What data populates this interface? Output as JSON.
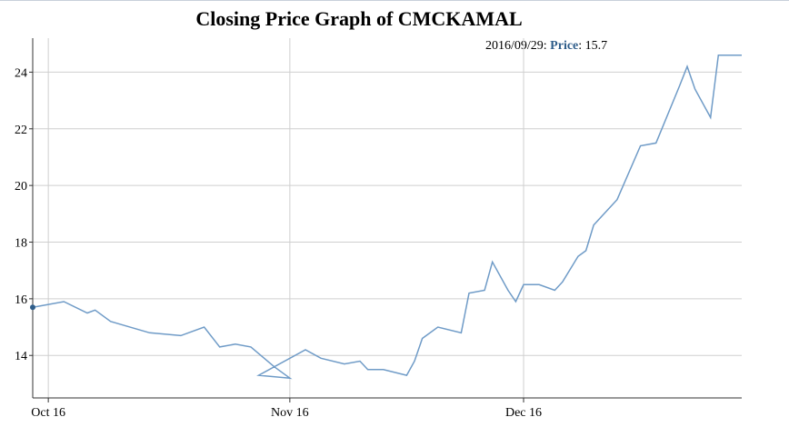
{
  "chart_data": {
    "type": "line",
    "title": "Closing Price Graph of CMCKAMAL",
    "xlabel": "",
    "ylabel": "",
    "x_tick_labels": [
      "Oct 16",
      "Nov 16",
      "Dec 16"
    ],
    "x_tick_dates": [
      "2016-10-01",
      "2016-11-01",
      "2016-12-01"
    ],
    "y_ticks": [
      14,
      16,
      18,
      20,
      22,
      24
    ],
    "xlim": [
      "2016-09-29",
      "2016-12-29"
    ],
    "ylim": [
      12.5,
      25.2
    ],
    "grid": true,
    "legend": "none",
    "line_color": "#6f9bc7",
    "series": [
      {
        "x": [
          "2016-09-29",
          "2016-10-03",
          "2016-10-06",
          "2016-10-07",
          "2016-10-09",
          "2016-10-14",
          "2016-10-18",
          "2016-10-21",
          "2016-10-23",
          "2016-10-25",
          "2016-10-27",
          "2016-10-30",
          "2016-11-01",
          "2016-10-28",
          "2016-11-03",
          "2016-11-05",
          "2016-11-08",
          "2016-11-10",
          "2016-11-11",
          "2016-11-13",
          "2016-11-16",
          "2016-11-17",
          "2016-11-18",
          "2016-11-20",
          "2016-11-23",
          "2016-11-24",
          "2016-11-26",
          "2016-11-27",
          "2016-11-29",
          "2016-11-30",
          "2016-12-01",
          "2016-12-03",
          "2016-12-05",
          "2016-12-06",
          "2016-12-08",
          "2016-12-09",
          "2016-12-10",
          "2016-12-11",
          "2016-12-13",
          "2016-12-16",
          "2016-12-18",
          "2016-12-21",
          "2016-12-22",
          "2016-12-23",
          "2016-12-25",
          "2016-12-26",
          "2016-12-27",
          "2016-12-29"
        ],
        "y": [
          15.7,
          15.9,
          15.5,
          15.6,
          15.2,
          14.8,
          14.7,
          15.0,
          14.3,
          14.4,
          14.3,
          13.6,
          13.2,
          13.3,
          14.2,
          13.9,
          13.7,
          13.8,
          13.5,
          13.5,
          13.3,
          13.8,
          14.6,
          15.0,
          14.8,
          16.2,
          16.3,
          17.3,
          16.3,
          15.9,
          16.5,
          16.5,
          16.3,
          16.6,
          17.5,
          17.7,
          18.6,
          18.9,
          19.5,
          21.4,
          21.5,
          23.5,
          24.2,
          23.4,
          22.4,
          24.6,
          24.6,
          24.6
        ]
      }
    ],
    "readout": {
      "date": "2016/09/29",
      "series": "Price",
      "value": "15.7"
    }
  }
}
